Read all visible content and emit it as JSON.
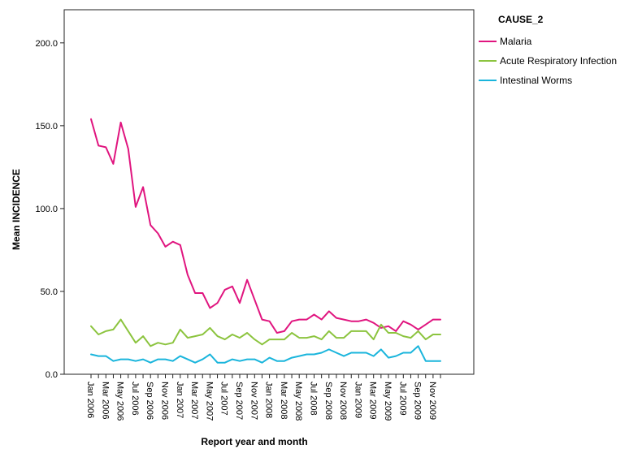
{
  "chart_data": {
    "type": "line",
    "xlabel": "Report year and month",
    "ylabel": "Mean INCIDENCE",
    "ylim": [
      0,
      220
    ],
    "yticks": [
      0,
      50,
      100,
      150,
      200
    ],
    "ytick_labels": [
      "0.0",
      "50.0",
      "100.0",
      "150.0",
      "200.0"
    ],
    "x_tick_labels": [
      "Jan 2006",
      "Mar 2006",
      "May 2006",
      "Jul 2006",
      "Sep 2006",
      "Nov 2006",
      "Jan 2007",
      "Mar 2007",
      "May 2007",
      "Jul 2007",
      "Sep 2007",
      "Nov 2007",
      "Jan 2008",
      "Mar 2008",
      "May 2008",
      "Jul 2008",
      "Sep 2008",
      "Nov 2008",
      "Jan 2009",
      "Mar 2009",
      "May 2009",
      "Jul 2009",
      "Sep 2009",
      "Nov 2009"
    ],
    "x": [
      "Jan 2006",
      "Feb 2006",
      "Mar 2006",
      "Apr 2006",
      "May 2006",
      "Jun 2006",
      "Jul 2006",
      "Aug 2006",
      "Sep 2006",
      "Oct 2006",
      "Nov 2006",
      "Dec 2006",
      "Jan 2007",
      "Feb 2007",
      "Mar 2007",
      "Apr 2007",
      "May 2007",
      "Jun 2007",
      "Jul 2007",
      "Aug 2007",
      "Sep 2007",
      "Oct 2007",
      "Nov 2007",
      "Dec 2007",
      "Jan 2008",
      "Feb 2008",
      "Mar 2008",
      "Apr 2008",
      "May 2008",
      "Jun 2008",
      "Jul 2008",
      "Aug 2008",
      "Sep 2008",
      "Oct 2008",
      "Nov 2008",
      "Dec 2008",
      "Jan 2009",
      "Feb 2009",
      "Mar 2009",
      "Apr 2009",
      "May 2009",
      "Jun 2009",
      "Jul 2009",
      "Aug 2009",
      "Sep 2009",
      "Oct 2009",
      "Nov 2009",
      "Dec 2009"
    ],
    "legend": {
      "title": "CAUSE_2",
      "position": "right"
    },
    "grid": false,
    "series": [
      {
        "name": "Malaria",
        "color": "#e0157f",
        "values": [
          154,
          138,
          137,
          127,
          152,
          136,
          101,
          113,
          90,
          85,
          77,
          80,
          78,
          60,
          49,
          49,
          40,
          43,
          51,
          53,
          43,
          57,
          45,
          33,
          32,
          25,
          26,
          32,
          33,
          33,
          36,
          33,
          38,
          34,
          33,
          32,
          32,
          33,
          31,
          28,
          29,
          26,
          32,
          30,
          27,
          30,
          33,
          33
        ]
      },
      {
        "name": "Acute Respiratory Infection",
        "color": "#8cc43f",
        "values": [
          29,
          24,
          26,
          27,
          33,
          26,
          19,
          23,
          17,
          19,
          18,
          19,
          27,
          22,
          23,
          24,
          28,
          23,
          21,
          24,
          22,
          25,
          21,
          18,
          21,
          21,
          21,
          25,
          22,
          22,
          23,
          21,
          26,
          22,
          22,
          26,
          26,
          26,
          21,
          30,
          25,
          25,
          23,
          22,
          26,
          21,
          24,
          24
        ]
      },
      {
        "name": "Intestinal Worms",
        "color": "#1ab5dc",
        "values": [
          12,
          11,
          11,
          8,
          9,
          9,
          8,
          9,
          7,
          9,
          9,
          8,
          11,
          9,
          7,
          9,
          12,
          7,
          7,
          9,
          8,
          9,
          9,
          7,
          10,
          8,
          8,
          10,
          11,
          12,
          12,
          13,
          15,
          13,
          11,
          13,
          13,
          13,
          11,
          15,
          10,
          11,
          13,
          13,
          17,
          8,
          8,
          8
        ]
      }
    ]
  }
}
